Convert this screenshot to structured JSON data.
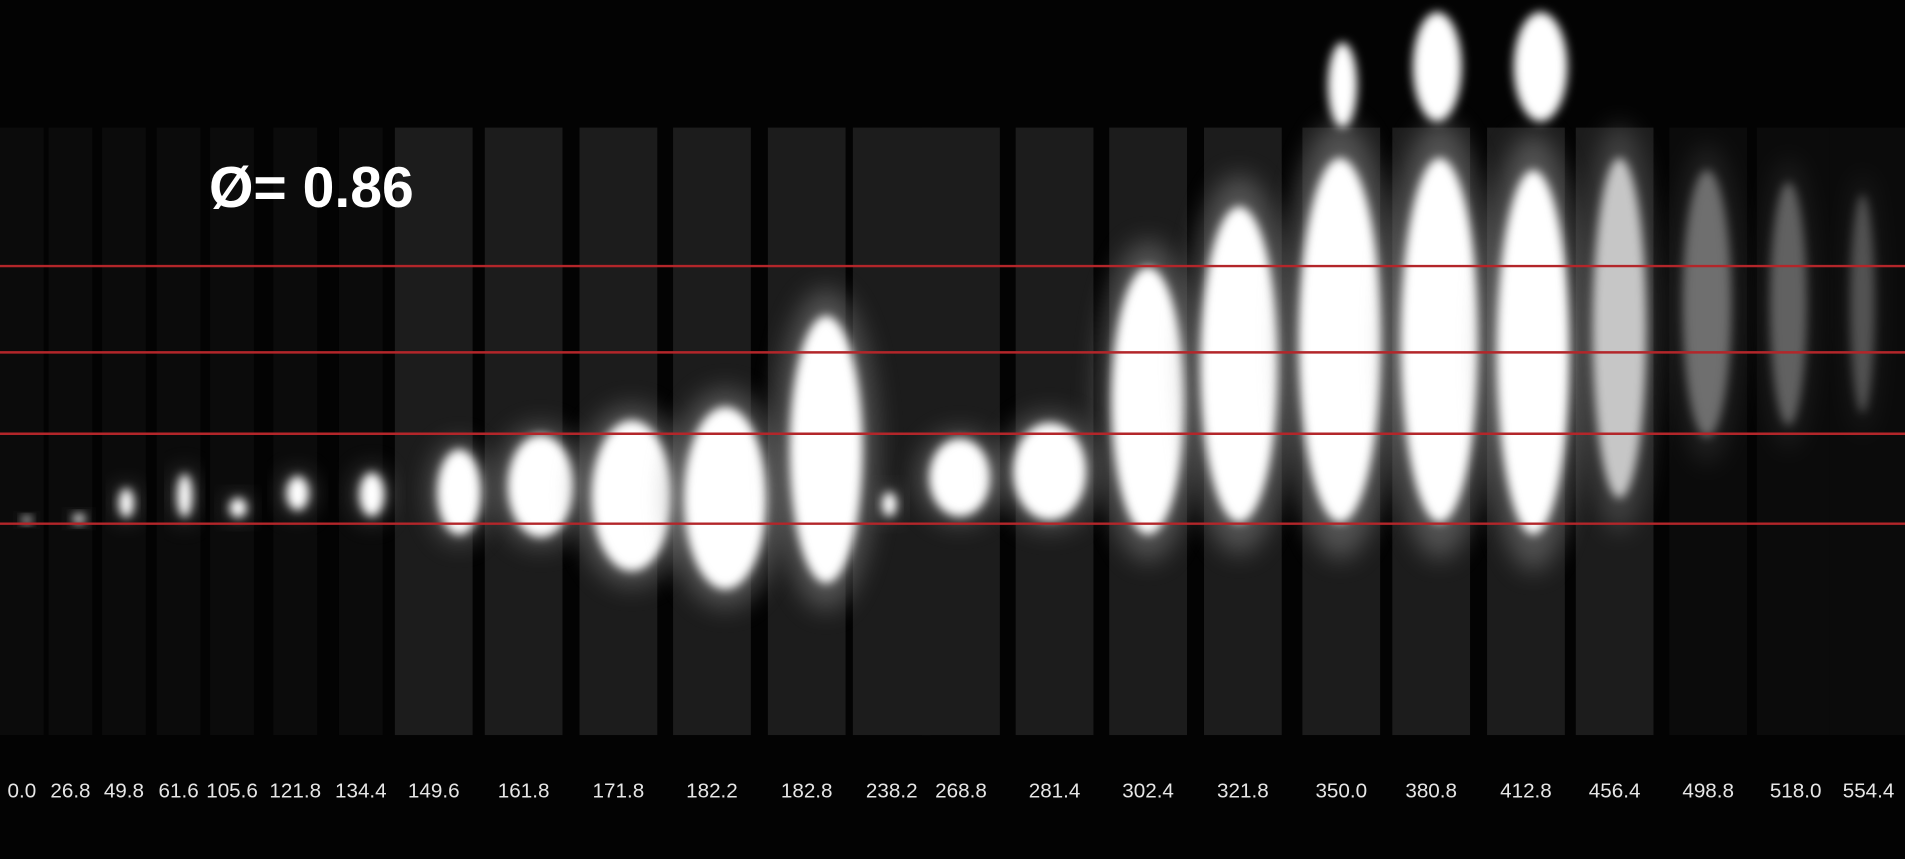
{
  "title": "Ø= 0.86",
  "frames": [
    "0.0",
    "26.8",
    "49.8",
    "61.6",
    "105.6",
    "121.8",
    "134.4",
    "149.6",
    "161.8",
    "171.8",
    "182.2",
    "182.8",
    "238.2",
    "268.8",
    "281.4",
    "302.4",
    "321.8",
    "350.0",
    "380.8",
    "412.8",
    "456.4",
    "498.8",
    "518.0",
    "554.4"
  ]
}
